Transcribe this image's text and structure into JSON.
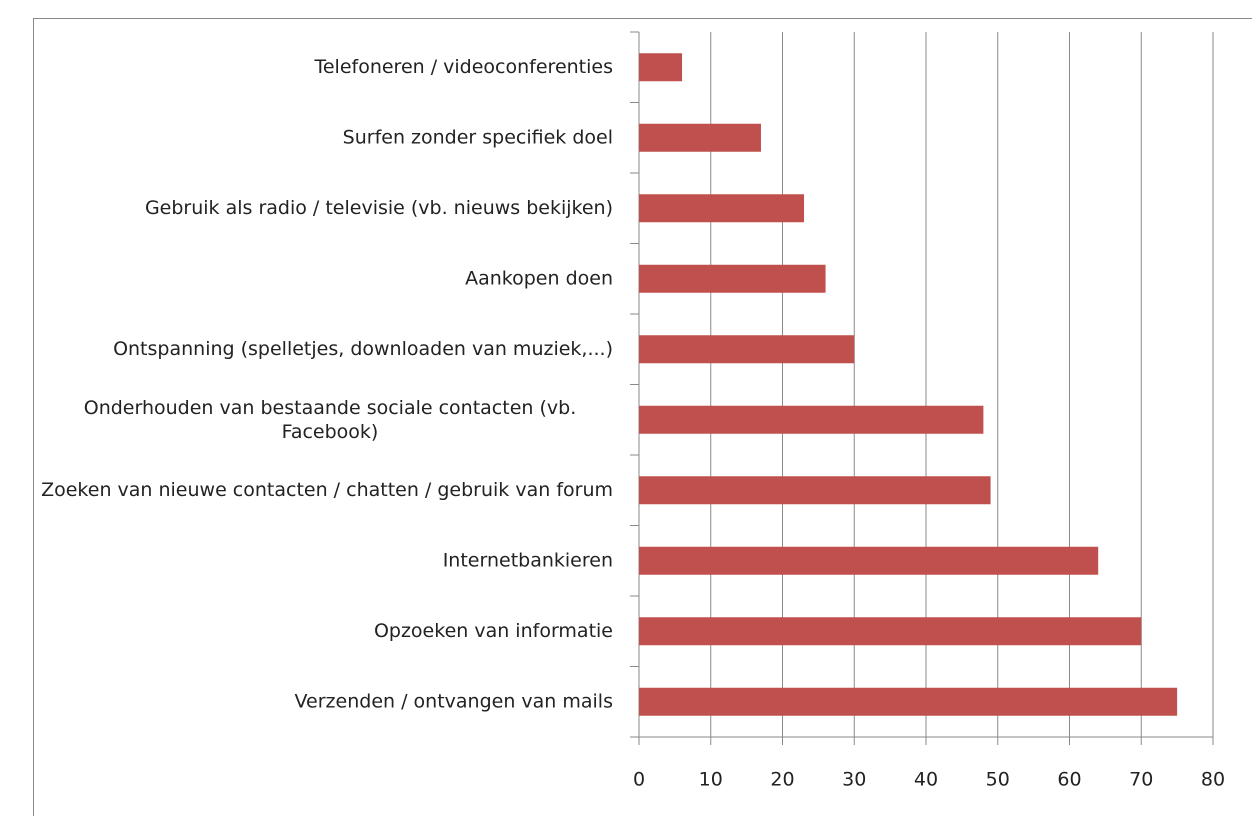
{
  "chart_data": {
    "type": "bar",
    "orientation": "horizontal",
    "categories": [
      "Telefoneren / videoconferenties",
      "Surfen zonder specifiek doel",
      "Gebruik als radio / televisie (vb. nieuws bekijken)",
      "Aankopen doen",
      "Ontspanning (spelletjes, downloaden van muziek,...)",
      "Onderhouden van bestaande sociale contacten (vb. Facebook)",
      "Zoeken van nieuwe contacten / chatten / gebruik van forum",
      "Internetbankieren",
      "Opzoeken van informatie",
      "Verzenden / ontvangen van mails"
    ],
    "values": [
      6,
      17,
      23,
      26,
      30,
      48,
      49,
      64,
      70,
      75
    ],
    "color": "#c0504d",
    "xlim": [
      0,
      80
    ],
    "xticks": [
      0,
      10,
      20,
      30,
      40,
      50,
      60,
      70,
      80
    ],
    "grid": true
  }
}
